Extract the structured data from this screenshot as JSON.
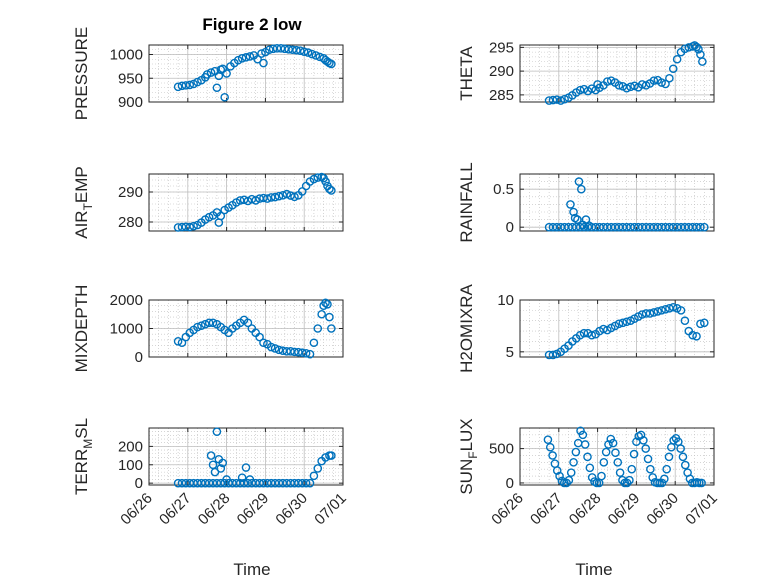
{
  "figure": {
    "title": "Figure 2 low",
    "xlabel": "Time",
    "x_tick_labels": [
      "06/26",
      "06/27",
      "06/28",
      "06/29",
      "06/30",
      "07/01"
    ]
  },
  "colors": {
    "marker": "#0072BD",
    "axis": "#262626",
    "grid": "#bdbdbd",
    "background": "#ffffff"
  },
  "chart_data": [
    {
      "type": "scatter",
      "ylabel": "PRESSURE",
      "ylim": [
        900,
        1020
      ],
      "yticks": [
        900,
        950,
        1000
      ],
      "xlim": [
        0,
        5
      ],
      "grid": true,
      "series": [
        {
          "x": [
            0.75,
            0.85,
            0.95,
            1.05,
            1.15,
            1.25,
            1.35,
            1.45,
            1.5,
            1.6,
            1.7,
            1.75,
            1.8,
            1.85,
            1.9,
            1.95,
            2.0,
            2.1,
            2.2,
            2.3,
            2.4,
            2.5,
            2.6,
            2.7,
            2.8,
            2.9,
            2.95,
            3.0,
            3.1,
            3.2,
            3.3,
            3.4,
            3.5,
            3.6,
            3.7,
            3.8,
            3.9,
            4.0,
            4.1,
            4.2,
            4.3,
            4.4,
            4.5,
            4.55,
            4.6,
            4.65,
            4.7
          ],
          "y": [
            932,
            934,
            935,
            936,
            938,
            942,
            946,
            952,
            958,
            962,
            965,
            930,
            955,
            968,
            970,
            910,
            960,
            975,
            982,
            988,
            992,
            994,
            996,
            998,
            990,
            1002,
            982,
            1005,
            1010,
            1012,
            1013,
            1013,
            1012,
            1011,
            1010,
            1009,
            1008,
            1006,
            1004,
            1001,
            998,
            995,
            992,
            988,
            985,
            982,
            980
          ]
        }
      ]
    },
    {
      "type": "scatter",
      "ylabel": "THETA",
      "ylim": [
        283.5,
        295.5
      ],
      "yticks": [
        285,
        290,
        295
      ],
      "xlim": [
        0,
        5
      ],
      "grid": true,
      "series": [
        {
          "x": [
            0.75,
            0.85,
            0.95,
            1.05,
            1.15,
            1.25,
            1.35,
            1.45,
            1.55,
            1.65,
            1.75,
            1.85,
            1.95,
            2.0,
            2.05,
            2.15,
            2.25,
            2.35,
            2.45,
            2.55,
            2.65,
            2.75,
            2.85,
            2.95,
            3.05,
            3.15,
            3.25,
            3.35,
            3.45,
            3.55,
            3.65,
            3.75,
            3.85,
            3.95,
            4.05,
            4.15,
            4.25,
            4.35,
            4.45,
            4.5,
            4.55,
            4.6,
            4.65,
            4.7
          ],
          "y": [
            283.8,
            283.9,
            284.0,
            283.8,
            284.1,
            284.4,
            284.9,
            285.5,
            286.0,
            286.2,
            285.8,
            286.3,
            286.0,
            287.2,
            286.5,
            287.0,
            287.8,
            288.0,
            287.6,
            287.0,
            286.8,
            286.4,
            286.7,
            286.9,
            286.6,
            287.2,
            287.0,
            287.4,
            288.0,
            288.1,
            287.6,
            287.3,
            288.5,
            290.5,
            292.5,
            294.0,
            294.7,
            295.0,
            295.2,
            295.4,
            295.1,
            294.6,
            293.5,
            292.0
          ]
        }
      ]
    },
    {
      "type": "scatter",
      "ylabel": "AIR_TEMP",
      "ylim": [
        277,
        296
      ],
      "yticks": [
        280,
        290
      ],
      "xlim": [
        0,
        5
      ],
      "grid": true,
      "series": [
        {
          "x": [
            0.75,
            0.85,
            0.95,
            1.05,
            1.15,
            1.25,
            1.35,
            1.45,
            1.55,
            1.65,
            1.75,
            1.8,
            1.85,
            1.95,
            2.05,
            2.15,
            2.25,
            2.35,
            2.45,
            2.55,
            2.65,
            2.75,
            2.85,
            2.95,
            3.05,
            3.15,
            3.25,
            3.35,
            3.45,
            3.55,
            3.65,
            3.75,
            3.85,
            3.95,
            4.05,
            4.15,
            4.25,
            4.35,
            4.45,
            4.5,
            4.55,
            4.6,
            4.65,
            4.7
          ],
          "y": [
            278.2,
            278.3,
            278.4,
            278.3,
            278.6,
            279.0,
            279.8,
            280.8,
            281.6,
            282.2,
            283.2,
            279.8,
            282.0,
            284.0,
            284.8,
            285.6,
            286.5,
            287.2,
            287.4,
            287.0,
            287.6,
            287.2,
            287.8,
            288.0,
            287.8,
            288.2,
            288.3,
            288.6,
            288.9,
            289.3,
            288.8,
            288.4,
            288.9,
            290.2,
            292.0,
            293.5,
            294.3,
            294.8,
            295.0,
            294.6,
            293.5,
            292.0,
            291.0,
            290.5
          ]
        }
      ]
    },
    {
      "type": "scatter",
      "ylabel": "RAINFALL",
      "ylim": [
        -0.05,
        0.7
      ],
      "yticks": [
        0,
        0.5
      ],
      "xlim": [
        0,
        5
      ],
      "grid": true,
      "series": [
        {
          "x": [
            0.75,
            0.85,
            0.95,
            1.05,
            1.15,
            1.25,
            1.35,
            1.45,
            1.55,
            1.65,
            1.75,
            1.85,
            1.95,
            2.05,
            2.15,
            2.25,
            2.35,
            2.45,
            2.55,
            2.65,
            2.75,
            2.85,
            2.95,
            3.05,
            3.15,
            3.25,
            3.35,
            3.45,
            3.55,
            3.65,
            3.75,
            3.85,
            3.95,
            4.05,
            4.15,
            4.25,
            4.35,
            4.45,
            4.55,
            4.65,
            4.75,
            1.3,
            1.38,
            1.42,
            1.48,
            1.52,
            1.58,
            1.62,
            1.7,
            1.78
          ],
          "y": [
            0,
            0,
            0,
            0,
            0,
            0,
            0,
            0,
            0,
            0,
            0,
            0,
            0,
            0,
            0,
            0,
            0,
            0,
            0,
            0,
            0,
            0,
            0,
            0,
            0,
            0,
            0,
            0,
            0,
            0,
            0,
            0,
            0,
            0,
            0,
            0,
            0,
            0,
            0,
            0,
            0,
            0.3,
            0.2,
            0.12,
            0.1,
            0.6,
            0.5,
            0.03,
            0.1,
            0.02
          ]
        }
      ]
    },
    {
      "type": "scatter",
      "ylabel": "MIXDEPTH",
      "ylim": [
        0,
        2000
      ],
      "yticks": [
        0,
        1000,
        2000
      ],
      "xlim": [
        0,
        5
      ],
      "grid": true,
      "series": [
        {
          "x": [
            0.75,
            0.85,
            0.95,
            1.05,
            1.15,
            1.25,
            1.35,
            1.45,
            1.55,
            1.65,
            1.75,
            1.85,
            1.95,
            2.05,
            2.15,
            2.25,
            2.35,
            2.45,
            2.55,
            2.65,
            2.75,
            2.85,
            2.95,
            3.05,
            3.15,
            3.25,
            3.35,
            3.45,
            3.55,
            3.65,
            3.75,
            3.85,
            3.95,
            4.05,
            4.15,
            4.25,
            4.35,
            4.45,
            4.5,
            4.55,
            4.6,
            4.65,
            4.7
          ],
          "y": [
            550,
            500,
            700,
            850,
            950,
            1050,
            1100,
            1150,
            1200,
            1200,
            1150,
            1050,
            950,
            850,
            1000,
            1100,
            1200,
            1300,
            1200,
            1000,
            850,
            700,
            500,
            450,
            350,
            300,
            250,
            220,
            200,
            200,
            180,
            170,
            150,
            130,
            100,
            500,
            1000,
            1500,
            1800,
            1900,
            1850,
            1400,
            1000
          ]
        }
      ]
    },
    {
      "type": "scatter",
      "ylabel": "H2OMIXRA",
      "ylim": [
        4.5,
        10
      ],
      "yticks": [
        5,
        10
      ],
      "xlim": [
        0,
        5
      ],
      "grid": true,
      "series": [
        {
          "x": [
            0.75,
            0.85,
            0.95,
            1.05,
            1.15,
            1.25,
            1.35,
            1.45,
            1.55,
            1.65,
            1.75,
            1.85,
            1.95,
            2.05,
            2.15,
            2.25,
            2.35,
            2.45,
            2.55,
            2.65,
            2.75,
            2.85,
            2.95,
            3.05,
            3.15,
            3.25,
            3.35,
            3.45,
            3.55,
            3.65,
            3.75,
            3.85,
            3.95,
            4.05,
            4.15,
            4.25,
            4.35,
            4.45,
            4.55,
            4.65,
            4.75
          ],
          "y": [
            4.7,
            4.7,
            4.8,
            5.0,
            5.3,
            5.6,
            6.0,
            6.3,
            6.6,
            6.8,
            6.8,
            6.6,
            6.7,
            7.0,
            7.2,
            7.1,
            7.3,
            7.5,
            7.7,
            7.8,
            7.9,
            8.0,
            8.2,
            8.4,
            8.6,
            8.7,
            8.7,
            8.8,
            8.9,
            9.0,
            9.1,
            9.2,
            9.3,
            9.2,
            9.0,
            8.0,
            7.0,
            6.6,
            6.5,
            7.7,
            7.8
          ]
        }
      ]
    },
    {
      "type": "scatter",
      "ylabel": "TERR_MSL",
      "ylim": [
        -10,
        300
      ],
      "yticks": [
        0,
        100,
        200
      ],
      "xlim": [
        0,
        5
      ],
      "grid": true,
      "series": [
        {
          "x": [
            0.75,
            0.85,
            0.95,
            1.05,
            1.15,
            1.25,
            1.35,
            1.45,
            1.55,
            1.65,
            1.75,
            1.85,
            1.95,
            2.05,
            2.15,
            2.25,
            2.35,
            2.45,
            2.55,
            2.65,
            2.75,
            2.85,
            2.95,
            3.05,
            3.15,
            3.25,
            3.35,
            3.45,
            3.55,
            3.65,
            3.75,
            3.85,
            3.95,
            4.05,
            4.15,
            4.25,
            4.35,
            4.45,
            4.55,
            4.65,
            4.7,
            1.6,
            1.65,
            1.7,
            1.75,
            1.8,
            1.85,
            1.9,
            2.0,
            2.4,
            2.5,
            2.6
          ],
          "y": [
            0,
            0,
            0,
            0,
            0,
            0,
            0,
            0,
            0,
            0,
            0,
            0,
            0,
            0,
            0,
            0,
            0,
            0,
            0,
            0,
            0,
            0,
            0,
            0,
            0,
            0,
            0,
            0,
            0,
            0,
            0,
            0,
            0,
            0,
            0,
            40,
            80,
            120,
            140,
            150,
            150,
            150,
            100,
            60,
            280,
            130,
            80,
            110,
            20,
            30,
            85,
            20
          ]
        }
      ]
    },
    {
      "type": "scatter",
      "ylabel": "SUN_FLUX",
      "ylim": [
        -30,
        800
      ],
      "yticks": [
        0,
        500
      ],
      "xlim": [
        0,
        5
      ],
      "grid": true,
      "series": [
        {
          "x": [
            0.72,
            0.78,
            0.84,
            0.9,
            0.96,
            1.02,
            1.08,
            1.14,
            1.2,
            1.26,
            1.32,
            1.38,
            1.44,
            1.5,
            1.56,
            1.62,
            1.68,
            1.74,
            1.8,
            1.86,
            1.92,
            1.98,
            2.04,
            2.1,
            2.16,
            2.22,
            2.28,
            2.34,
            2.4,
            2.46,
            2.52,
            2.58,
            2.64,
            2.7,
            2.76,
            2.82,
            2.88,
            2.94,
            3.0,
            3.06,
            3.12,
            3.18,
            3.24,
            3.3,
            3.36,
            3.42,
            3.48,
            3.54,
            3.6,
            3.66,
            3.72,
            3.78,
            3.84,
            3.9,
            3.96,
            4.02,
            4.08,
            4.14,
            4.2,
            4.26,
            4.32,
            4.38,
            4.44,
            4.5,
            4.56,
            4.62,
            4.68
          ],
          "y": [
            630,
            520,
            400,
            280,
            180,
            100,
            30,
            0,
            0,
            40,
            150,
            300,
            450,
            580,
            760,
            700,
            560,
            380,
            220,
            80,
            20,
            0,
            0,
            100,
            300,
            450,
            560,
            640,
            580,
            440,
            300,
            150,
            40,
            0,
            0,
            40,
            200,
            420,
            600,
            680,
            700,
            620,
            500,
            350,
            200,
            80,
            10,
            0,
            0,
            0,
            60,
            200,
            380,
            520,
            620,
            650,
            600,
            500,
            380,
            260,
            150,
            60,
            0,
            0,
            10,
            0,
            0
          ]
        }
      ]
    }
  ]
}
